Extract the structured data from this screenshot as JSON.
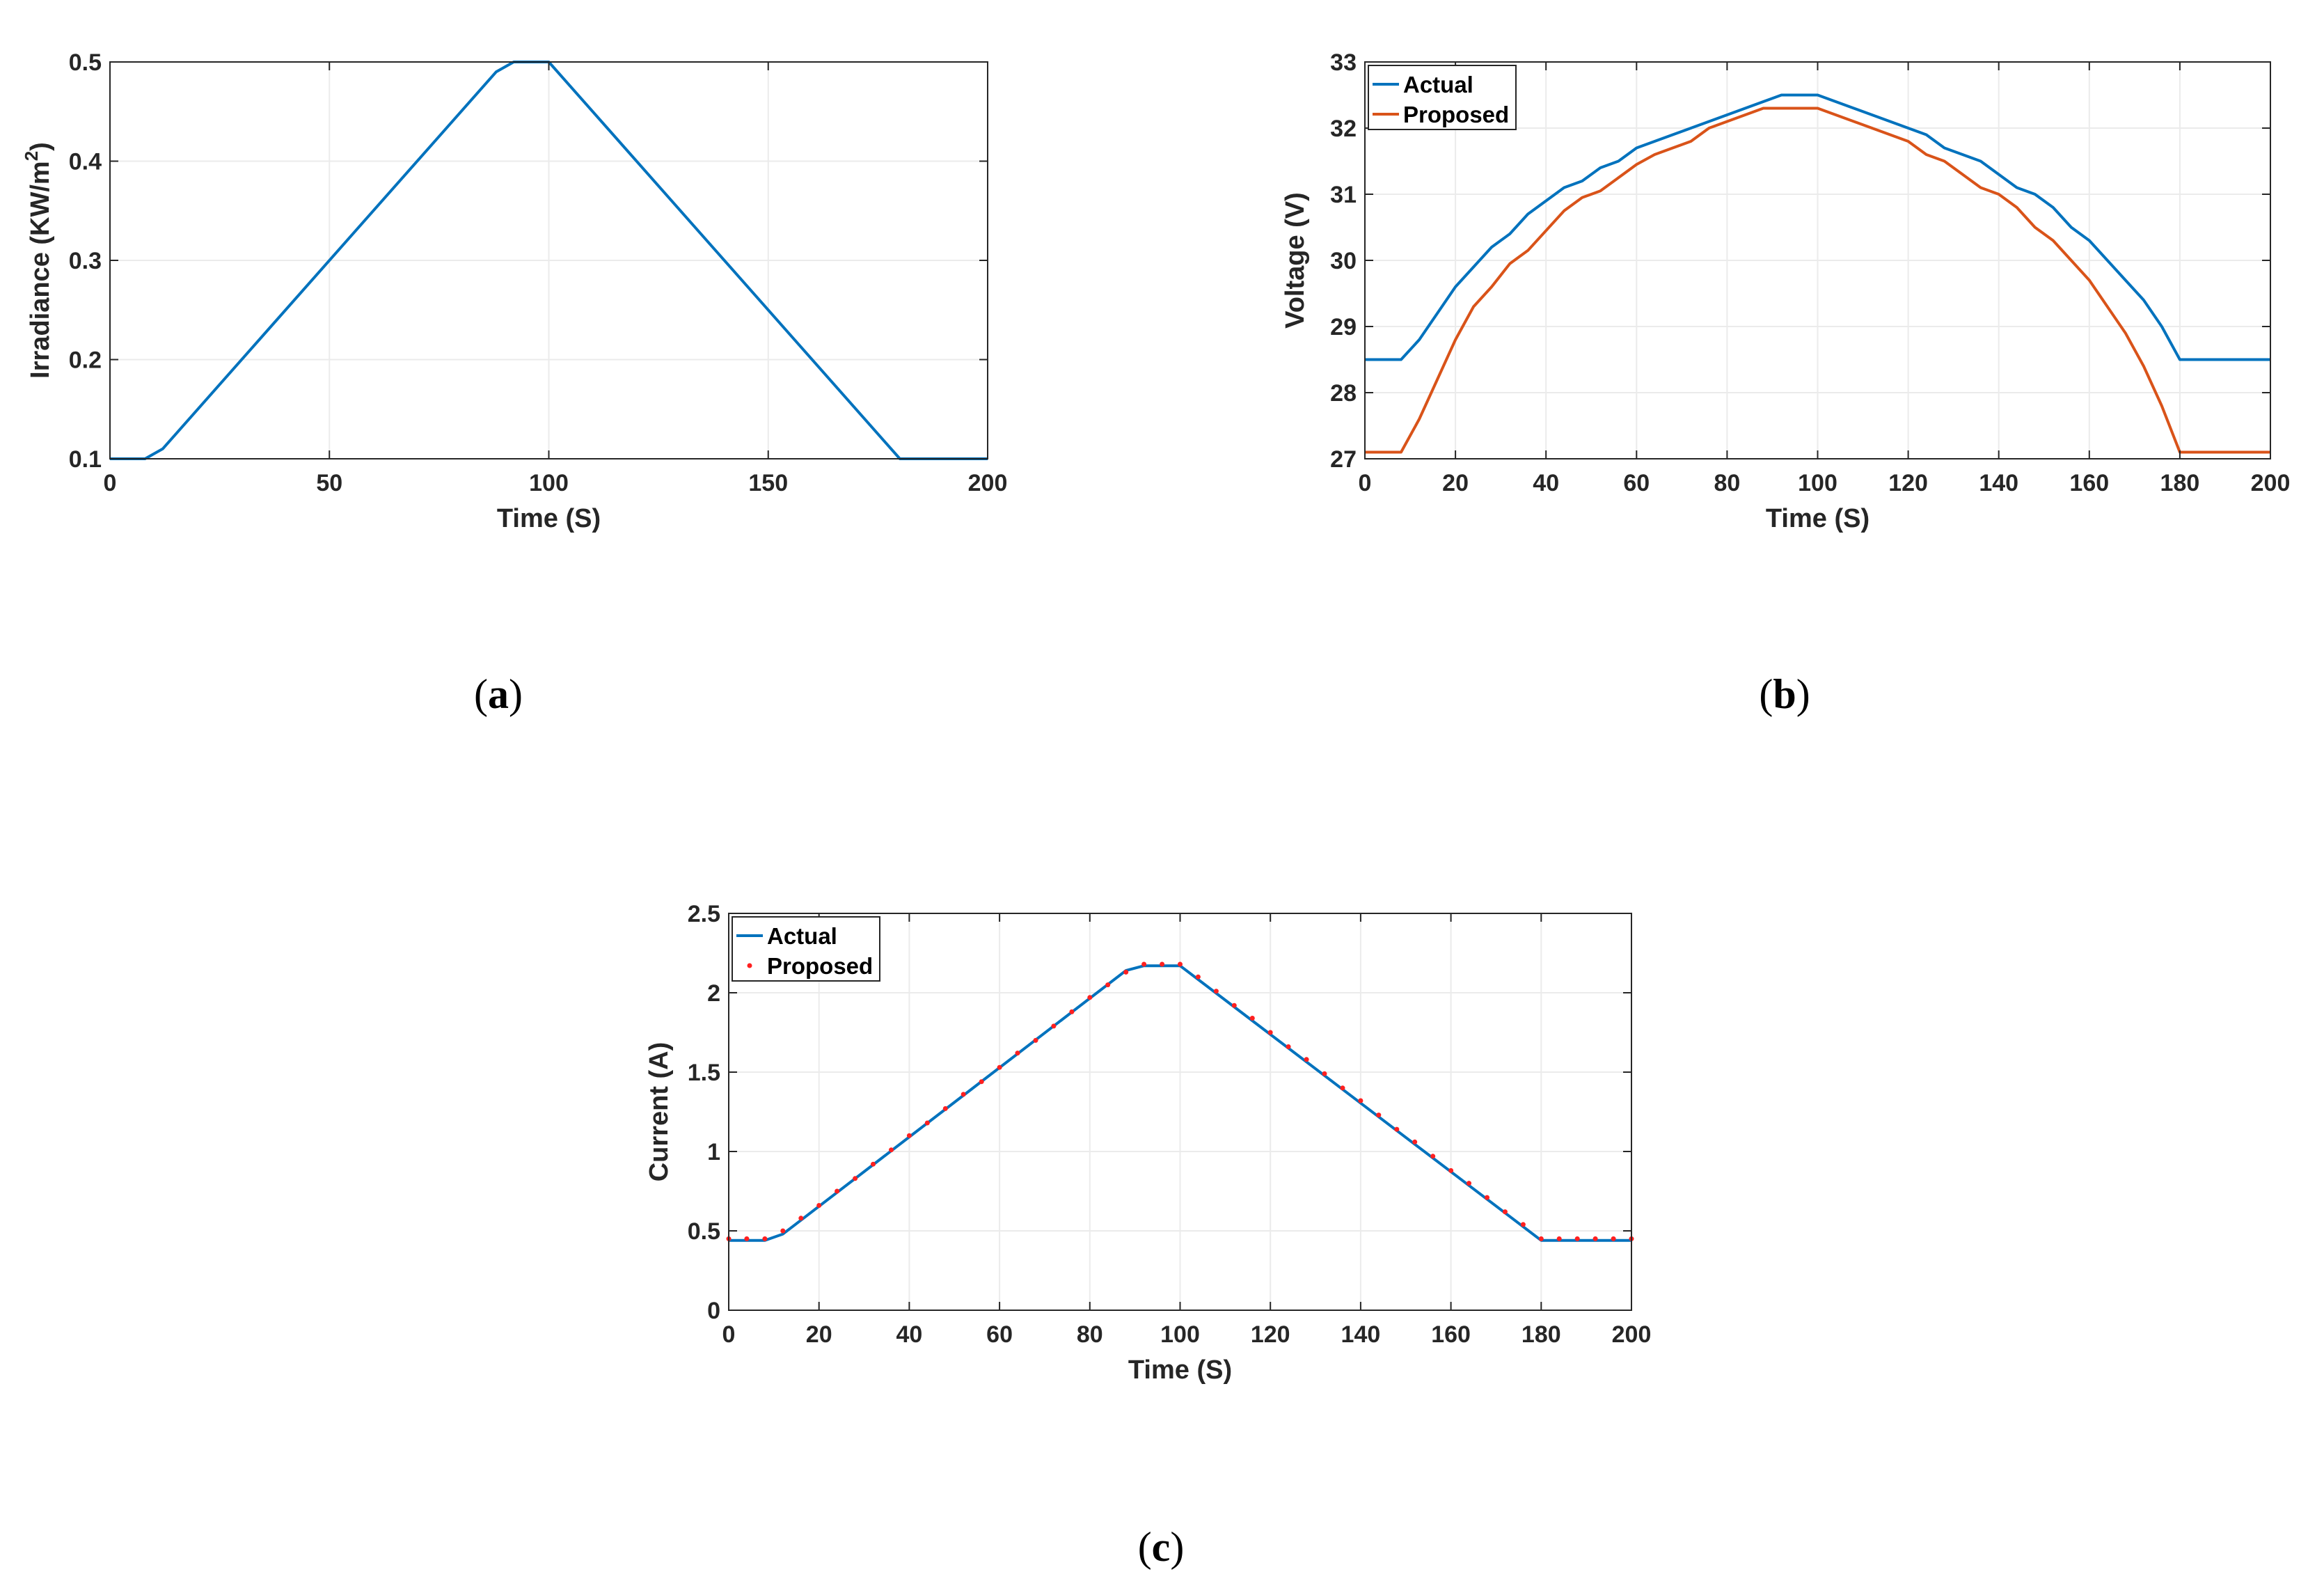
{
  "colors": {
    "actual": "#0072BD",
    "proposed": "#D95319",
    "proposed_marker": "#FF2020",
    "grid": "#EBEBEB",
    "axis": "#262626"
  },
  "captions": {
    "a": {
      "open": "(",
      "letter": "a",
      "close": ")"
    },
    "b": {
      "open": "(",
      "letter": "b",
      "close": ")"
    },
    "c": {
      "open": "(",
      "letter": "c",
      "close": ")"
    }
  },
  "chart_data": [
    {
      "id": "a",
      "type": "line",
      "title": "",
      "xlabel": "Time (S)",
      "ylabel": {
        "prefix": "Irradiance (KW/m",
        "sup": "2",
        "suffix": ")"
      },
      "xlim": [
        0,
        200
      ],
      "ylim": [
        0.1,
        0.5
      ],
      "xticks": [
        0,
        50,
        100,
        150,
        200
      ],
      "xtick_labels": [
        "0",
        "50",
        "100",
        "150",
        "200"
      ],
      "yticks": [
        0.1,
        0.2,
        0.3,
        0.4,
        0.5
      ],
      "ytick_labels": [
        "0.1",
        "0.2",
        "0.3",
        "0.4",
        "0.5"
      ],
      "grid": true,
      "legend": null,
      "series": [
        {
          "name": "Irradiance",
          "style": "line",
          "color": "#0072BD",
          "x": [
            0,
            8,
            12,
            88,
            92,
            100,
            180,
            200
          ],
          "y": [
            0.1,
            0.1,
            0.11,
            0.49,
            0.5,
            0.5,
            0.1,
            0.1
          ]
        }
      ]
    },
    {
      "id": "b",
      "type": "line",
      "title": "",
      "xlabel": "Time (S)",
      "ylabel": {
        "prefix": "Voltage (V)",
        "sup": "",
        "suffix": ""
      },
      "xlim": [
        0,
        200
      ],
      "ylim": [
        27,
        33
      ],
      "xticks": [
        0,
        20,
        40,
        60,
        80,
        100,
        120,
        140,
        160,
        180,
        200
      ],
      "xtick_labels": [
        "0",
        "20",
        "40",
        "60",
        "80",
        "100",
        "120",
        "140",
        "160",
        "180",
        "200"
      ],
      "yticks": [
        27,
        28,
        29,
        30,
        31,
        32,
        33
      ],
      "ytick_labels": [
        "27",
        "28",
        "29",
        "30",
        "31",
        "32",
        "33"
      ],
      "grid": true,
      "legend": "top-left",
      "series": [
        {
          "name": "Actual",
          "style": "line",
          "color": "#0072BD",
          "x": [
            0,
            8,
            12,
            16,
            20,
            24,
            28,
            32,
            36,
            40,
            44,
            48,
            52,
            56,
            60,
            64,
            68,
            72,
            76,
            80,
            84,
            88,
            92,
            96,
            100,
            104,
            108,
            112,
            116,
            120,
            124,
            128,
            132,
            136,
            140,
            144,
            148,
            152,
            156,
            160,
            164,
            168,
            172,
            176,
            180,
            200
          ],
          "y": [
            28.5,
            28.5,
            28.8,
            29.2,
            29.6,
            29.9,
            30.2,
            30.4,
            30.7,
            30.9,
            31.1,
            31.2,
            31.4,
            31.5,
            31.7,
            31.8,
            31.9,
            32.0,
            32.1,
            32.2,
            32.3,
            32.4,
            32.5,
            32.5,
            32.5,
            32.4,
            32.3,
            32.2,
            32.1,
            32.0,
            31.9,
            31.7,
            31.6,
            31.5,
            31.3,
            31.1,
            31.0,
            30.8,
            30.5,
            30.3,
            30.0,
            29.7,
            29.4,
            29.0,
            28.5,
            28.5
          ]
        },
        {
          "name": "Proposed",
          "style": "line",
          "color": "#D95319",
          "x": [
            0,
            8,
            12,
            16,
            20,
            24,
            28,
            32,
            36,
            40,
            44,
            48,
            52,
            56,
            60,
            64,
            68,
            72,
            76,
            80,
            84,
            88,
            92,
            96,
            100,
            104,
            108,
            112,
            116,
            120,
            124,
            128,
            132,
            136,
            140,
            144,
            148,
            152,
            156,
            160,
            164,
            168,
            172,
            176,
            180,
            200
          ],
          "y": [
            27.1,
            27.1,
            27.6,
            28.2,
            28.8,
            29.3,
            29.6,
            29.95,
            30.15,
            30.45,
            30.75,
            30.95,
            31.05,
            31.25,
            31.45,
            31.6,
            31.7,
            31.8,
            32.0,
            32.1,
            32.2,
            32.3,
            32.3,
            32.3,
            32.3,
            32.2,
            32.1,
            32.0,
            31.9,
            31.8,
            31.6,
            31.5,
            31.3,
            31.1,
            31.0,
            30.8,
            30.5,
            30.3,
            30.0,
            29.7,
            29.3,
            28.9,
            28.4,
            27.8,
            27.1,
            27.1
          ]
        }
      ]
    },
    {
      "id": "c",
      "type": "line",
      "title": "",
      "xlabel": "Time (S)",
      "ylabel": {
        "prefix": "Current (A)",
        "sup": "",
        "suffix": ""
      },
      "xlim": [
        0,
        200
      ],
      "ylim": [
        0,
        2.5
      ],
      "xticks": [
        0,
        20,
        40,
        60,
        80,
        100,
        120,
        140,
        160,
        180,
        200
      ],
      "xtick_labels": [
        "0",
        "20",
        "40",
        "60",
        "80",
        "100",
        "120",
        "140",
        "160",
        "180",
        "200"
      ],
      "yticks": [
        0,
        0.5,
        1,
        1.5,
        2,
        2.5
      ],
      "ytick_labels": [
        "0",
        "0.5",
        "1",
        "1.5",
        "2",
        "2.5"
      ],
      "grid": true,
      "legend": "top-left",
      "series": [
        {
          "name": "Actual",
          "style": "line",
          "color": "#0072BD",
          "x": [
            0,
            8,
            12,
            88,
            92,
            100,
            180,
            200
          ],
          "y": [
            0.44,
            0.44,
            0.48,
            2.14,
            2.17,
            2.17,
            0.44,
            0.44
          ]
        },
        {
          "name": "Proposed",
          "style": "markers",
          "color": "#FF2020",
          "x": [
            0,
            4,
            8,
            12,
            16,
            20,
            24,
            28,
            32,
            36,
            40,
            44,
            48,
            52,
            56,
            60,
            64,
            68,
            72,
            76,
            80,
            84,
            88,
            92,
            96,
            100,
            104,
            108,
            112,
            116,
            120,
            124,
            128,
            132,
            136,
            140,
            144,
            148,
            152,
            156,
            160,
            164,
            168,
            172,
            176,
            180,
            184,
            188,
            192,
            196,
            200
          ],
          "y": [
            0.45,
            0.45,
            0.45,
            0.5,
            0.58,
            0.66,
            0.75,
            0.83,
            0.92,
            1.01,
            1.1,
            1.18,
            1.27,
            1.36,
            1.44,
            1.53,
            1.62,
            1.7,
            1.79,
            1.88,
            1.97,
            2.05,
            2.13,
            2.18,
            2.18,
            2.18,
            2.1,
            2.01,
            1.92,
            1.84,
            1.75,
            1.66,
            1.58,
            1.49,
            1.4,
            1.32,
            1.23,
            1.14,
            1.06,
            0.97,
            0.88,
            0.8,
            0.71,
            0.62,
            0.54,
            0.45,
            0.45,
            0.45,
            0.45,
            0.45,
            0.45
          ]
        }
      ]
    }
  ]
}
